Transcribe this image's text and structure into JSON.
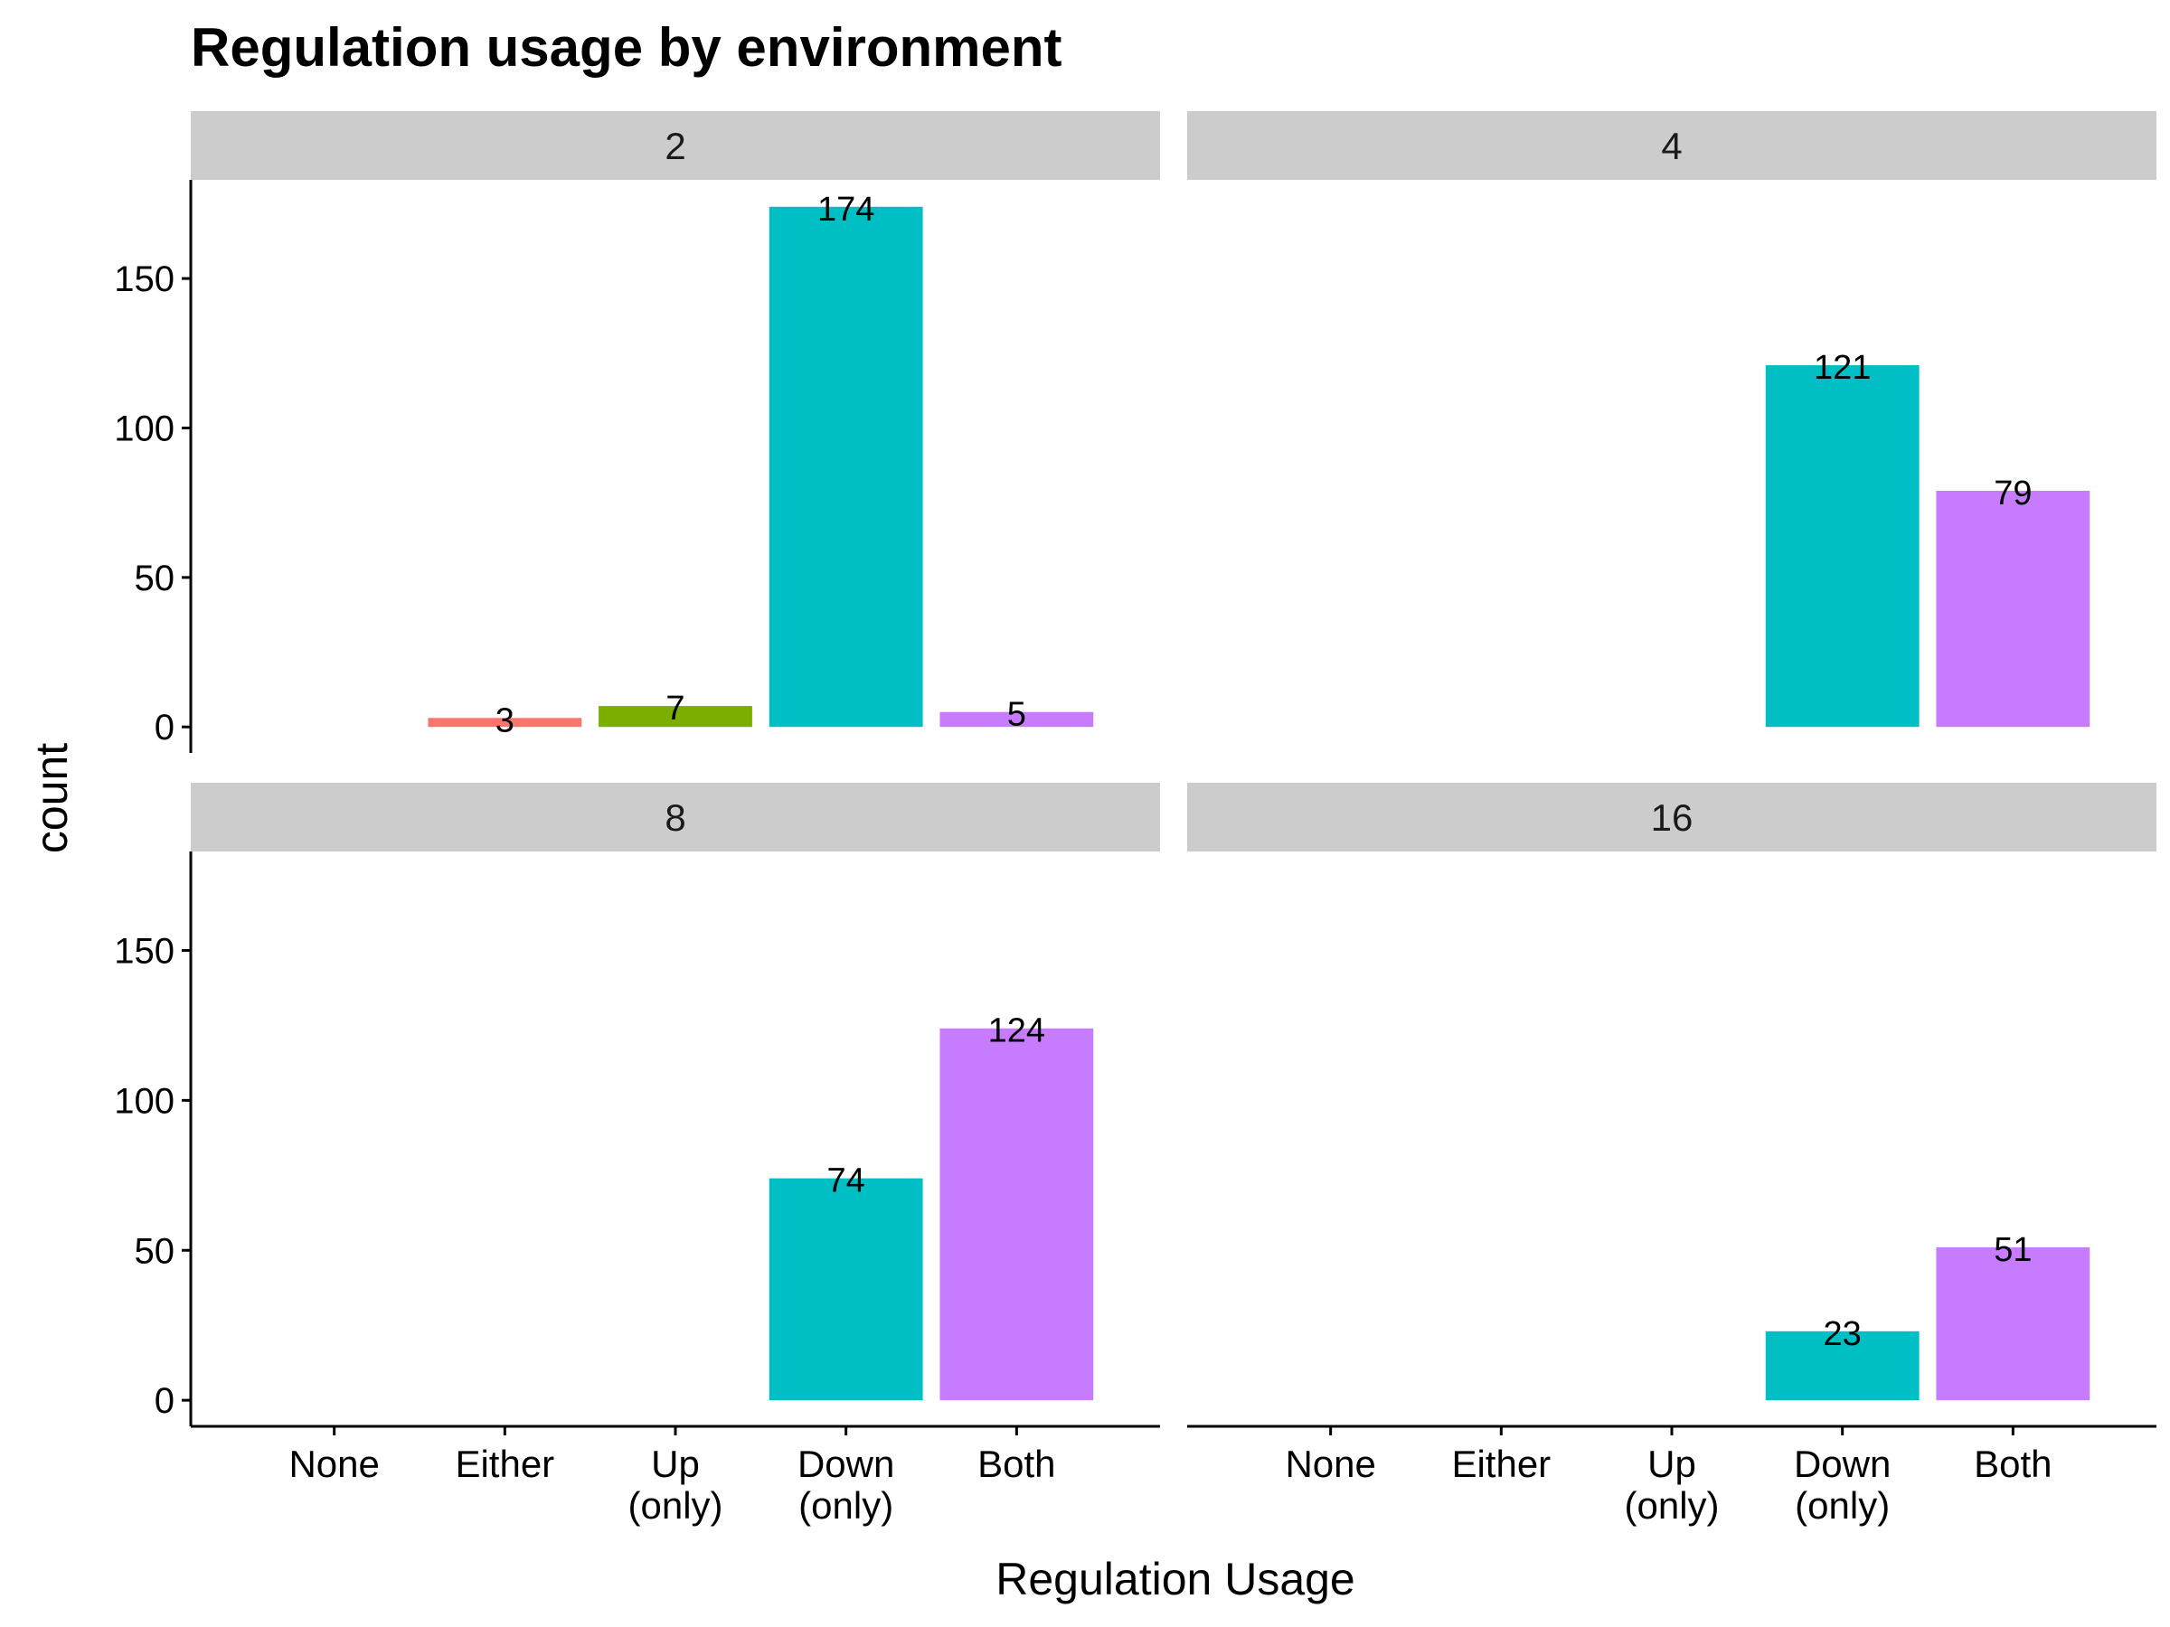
{
  "chart_data": {
    "type": "bar",
    "title": "Regulation usage by environment",
    "xlabel": "Regulation Usage",
    "ylabel": "count",
    "categories": [
      "None",
      "Either",
      "Up\n(only)",
      "Down\n(only)",
      "Both"
    ],
    "category_colors": [
      "#F8766D",
      "#F8766D",
      "#7CAE00",
      "#00BFC4",
      "#C77CFF"
    ],
    "ylim": [
      0,
      183
    ],
    "yticks": [
      0,
      50,
      100,
      150
    ],
    "grid": false,
    "legend": "none",
    "facets": [
      {
        "label": "2",
        "values": [
          null,
          3,
          7,
          174,
          5
        ]
      },
      {
        "label": "4",
        "values": [
          null,
          null,
          null,
          121,
          79
        ]
      },
      {
        "label": "8",
        "values": [
          null,
          null,
          null,
          74,
          124
        ]
      },
      {
        "label": "16",
        "values": [
          null,
          null,
          null,
          23,
          51
        ]
      }
    ]
  }
}
